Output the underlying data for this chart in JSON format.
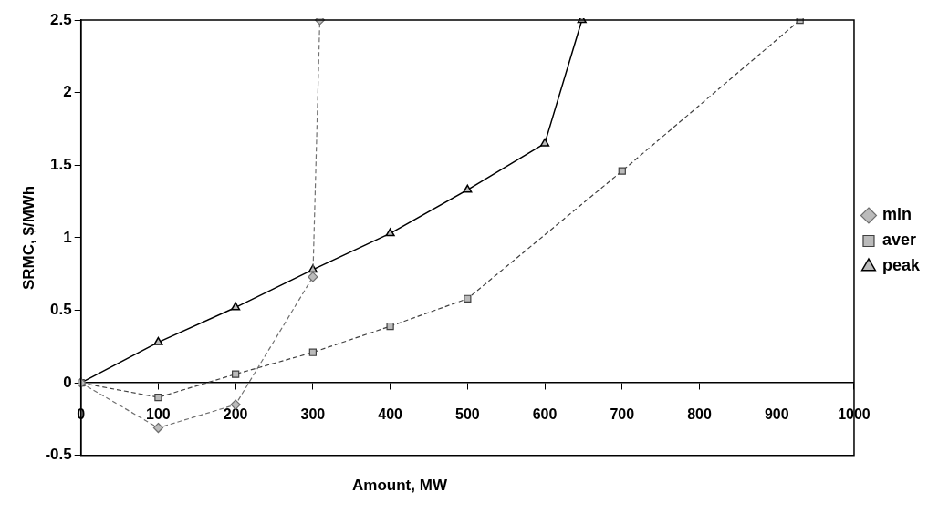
{
  "chart_data": {
    "type": "line",
    "xlabel": "Amount, MW",
    "ylabel": "SRMC, $/MWh",
    "xlim": [
      0,
      1000
    ],
    "xticks": [
      0,
      100,
      200,
      300,
      400,
      500,
      600,
      700,
      800,
      900,
      1000
    ],
    "ylim": [
      -0.5,
      2.5
    ],
    "yticks": [
      -0.5,
      0,
      0.5,
      1,
      1.5,
      2,
      2.5
    ],
    "grid": false,
    "legend": "right",
    "series": [
      {
        "name": "min",
        "color": "#707070",
        "marker": "diamond",
        "line_style": "dashed",
        "x": [
          0,
          100,
          200,
          300,
          309
        ],
        "values": [
          0,
          -0.31,
          -0.15,
          0.73,
          2.5
        ]
      },
      {
        "name": "aver",
        "color": "#404040",
        "marker": "square",
        "line_style": "dashed",
        "x": [
          0,
          100,
          200,
          300,
          400,
          500,
          700,
          930
        ],
        "values": [
          0,
          -0.1,
          0.06,
          0.21,
          0.39,
          0.58,
          1.46,
          2.5
        ]
      },
      {
        "name": "peak",
        "color": "#000000",
        "marker": "triangle",
        "line_style": "solid",
        "x": [
          0,
          100,
          200,
          300,
          400,
          500,
          600,
          648
        ],
        "values": [
          0,
          0.28,
          0.52,
          0.78,
          1.03,
          1.33,
          1.65,
          2.5
        ]
      }
    ]
  }
}
